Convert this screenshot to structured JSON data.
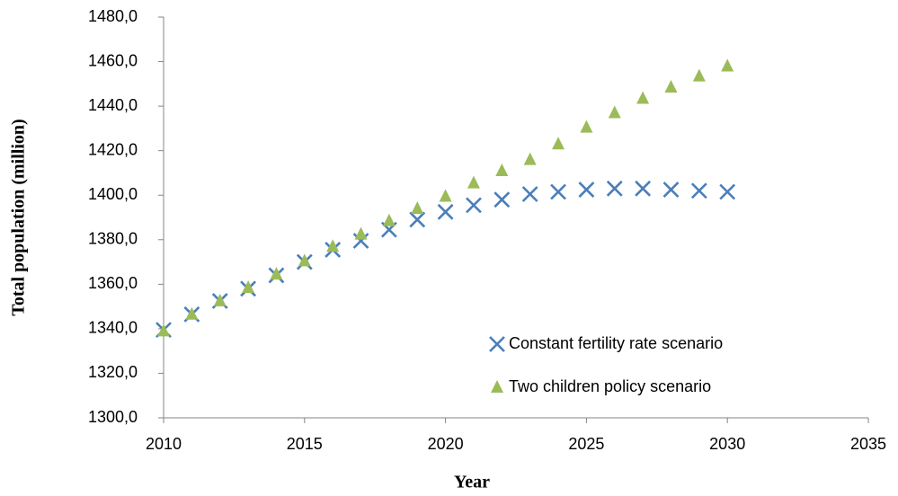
{
  "chart_data": {
    "type": "scatter",
    "x_label": "Year",
    "y_label": "Total population (million)",
    "x": [
      2010,
      2011,
      2012,
      2013,
      2014,
      2015,
      2016,
      2017,
      2018,
      2019,
      2020,
      2021,
      2022,
      2023,
      2024,
      2025,
      2026,
      2027,
      2028,
      2029,
      2030
    ],
    "series": [
      {
        "name": "Constant fertility rate scenario",
        "color": "#4a7ebb",
        "marker": "x",
        "values": [
          1339.5,
          1346.5,
          1352.5,
          1358,
          1364,
          1370,
          1375.5,
          1379.5,
          1384.5,
          1389,
          1392.5,
          1395.5,
          1398,
          1400.5,
          1401.5,
          1402.5,
          1403,
          1403,
          1402.5,
          1402,
          1401.5
        ]
      },
      {
        "name": "Two children policy scenario",
        "color": "#9bbb59",
        "marker": "triangle",
        "values": [
          1339,
          1346.5,
          1352.5,
          1358.5,
          1364.5,
          1370.5,
          1377,
          1382.5,
          1388.5,
          1394,
          1399.5,
          1405.5,
          1411,
          1416,
          1423,
          1430.5,
          1437,
          1443.5,
          1448.5,
          1453.5,
          1458
        ]
      }
    ],
    "xlim": [
      2010,
      2035
    ],
    "xticks": [
      2010,
      2015,
      2020,
      2025,
      2030,
      2035
    ],
    "ylim": [
      1300,
      1480
    ],
    "yticks": [
      {
        "value": 1300,
        "label": "1300,0"
      },
      {
        "value": 1320,
        "label": "1320,0"
      },
      {
        "value": 1340,
        "label": "1340,0"
      },
      {
        "value": 1360,
        "label": "1360,0"
      },
      {
        "value": 1380,
        "label": "1380,0"
      },
      {
        "value": 1400,
        "label": "1400,0"
      },
      {
        "value": 1420,
        "label": "1420,0"
      },
      {
        "value": 1440,
        "label": "1440,0"
      },
      {
        "value": 1460,
        "label": "1460,0"
      },
      {
        "value": 1480,
        "label": "1480,0"
      }
    ],
    "grid": false,
    "legend": "lower right"
  }
}
